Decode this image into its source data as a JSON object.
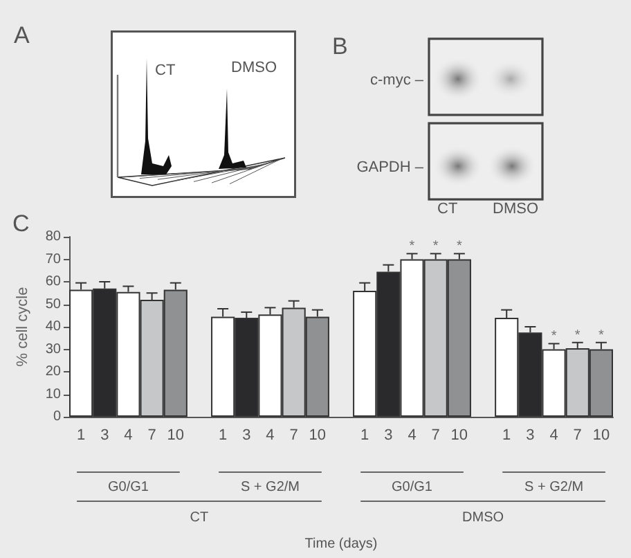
{
  "chart_data": [
    {
      "type": "other",
      "title": "A",
      "annotations": [
        "CT",
        "DMSO"
      ]
    },
    {
      "type": "other",
      "title": "B",
      "annotations": [
        "c-myc –",
        "GAPDH –",
        "CT",
        "DMSO"
      ]
    },
    {
      "type": "bar",
      "title": "C",
      "xlabel": "Time (days)",
      "ylabel": "% cell cycle",
      "categories": [
        "1",
        "3",
        "4",
        "7",
        "10",
        null,
        "1",
        "3",
        "4",
        "7",
        "10",
        null,
        "1",
        "3",
        "4",
        "7",
        "10",
        null,
        "1",
        "3",
        "4",
        "7",
        "10"
      ],
      "values": [
        56.5,
        57,
        55.5,
        52,
        56.5,
        null,
        44.5,
        44,
        45.5,
        48.5,
        44.5,
        null,
        56,
        64.5,
        70,
        70,
        70,
        null,
        44,
        37.5,
        30,
        30.5,
        30
      ],
      "colors": [
        "#ffffff",
        "#2a2a2d",
        "#ffffff",
        "#c5c7c9",
        "#8f9193",
        null,
        "#ffffff",
        "#2a2a2d",
        "#ffffff",
        "#c5c7c9",
        "#8f9193",
        null,
        "#ffffff",
        "#2a2a2d",
        "#ffffff",
        "#c5c7c9",
        "#8f9193",
        null,
        "#ffffff",
        "#2a2a2d",
        "#ffffff",
        "#c5c7c9",
        "#8f9193"
      ],
      "errors": [
        [
          56.5,
          59.5
        ],
        [
          57,
          60
        ],
        [
          55.5,
          58
        ],
        [
          52,
          55
        ],
        [
          56.5,
          59.5
        ],
        null,
        [
          44.5,
          48
        ],
        [
          44,
          46.5
        ],
        [
          45.5,
          48.5
        ],
        [
          48.5,
          51.5
        ],
        [
          44.5,
          47.5
        ],
        null,
        [
          56,
          59.5
        ],
        [
          64.5,
          67.5
        ],
        [
          70,
          72.5
        ],
        [
          70,
          72.5
        ],
        [
          70,
          72.5
        ],
        null,
        [
          44,
          47.5
        ],
        [
          37.5,
          40
        ],
        [
          30,
          32.5
        ],
        [
          30.5,
          33
        ],
        [
          30,
          33
        ]
      ],
      "value_labels": [
        null,
        null,
        null,
        null,
        null,
        null,
        null,
        null,
        null,
        null,
        null,
        null,
        null,
        null,
        "*",
        "*",
        "*",
        null,
        null,
        null,
        "*",
        "*",
        "*"
      ],
      "annotations": [
        "G0/G1",
        "S + G2/M",
        "G0/G1",
        "S + G2/M",
        "CT",
        "DMSO"
      ],
      "ylim": [
        0,
        80
      ],
      "yticks": [
        0,
        10,
        20,
        30,
        40,
        50,
        60,
        70,
        80
      ]
    }
  ]
}
